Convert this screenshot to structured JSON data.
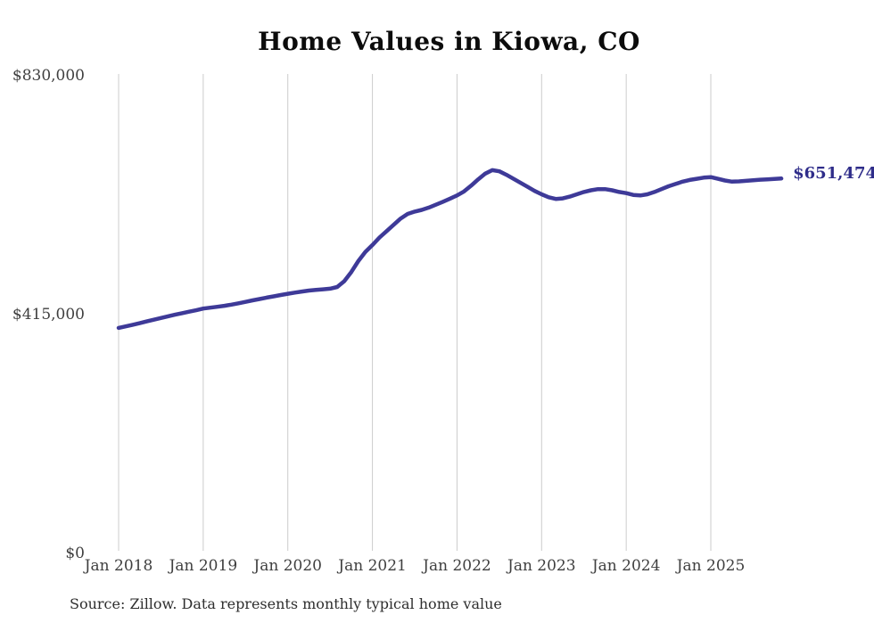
{
  "title": "Home Values in Kiowa, CO",
  "source_note": "Source: Zillow. Data represents monthly typical home value",
  "chart_data": {
    "type": "line",
    "title": "Home Values in Kiowa, CO",
    "xlabel": "",
    "ylabel": "",
    "ylim": [
      0,
      830000
    ],
    "grid": "vertical-only",
    "legend_position": "none",
    "colors": {
      "line": "#3e3a98",
      "end_label": "#2f2d8a",
      "gridline": "#cccccc",
      "axis_text": "#3f3f3f",
      "title_text": "#0c0c0c",
      "background": "#ffffff"
    },
    "y_ticks": [
      {
        "label": "$830,000",
        "value": 830000
      },
      {
        "label": "$415,000",
        "value": 415000
      },
      {
        "label": "$0",
        "value": 0
      }
    ],
    "x_tick_labels": [
      "Jan 2018",
      "Jan 2019",
      "Jan 2020",
      "Jan 2021",
      "Jan 2022",
      "Jan 2023",
      "Jan 2024",
      "Jan 2025"
    ],
    "last_value": 651474,
    "last_value_label": "$651,474",
    "series": [
      {
        "name": "Typical home value",
        "frequency": "monthly",
        "start": "2018-01",
        "end": "2025-11",
        "values": [
          392000,
          394600,
          397300,
          400200,
          403200,
          406200,
          409100,
          412000,
          414800,
          417500,
          420100,
          422600,
          425500,
          427100,
          428700,
          430400,
          432400,
          434700,
          437200,
          439700,
          442100,
          444500,
          446800,
          449100,
          451200,
          453200,
          455100,
          456800,
          458000,
          459000,
          460000,
          463000,
          473000,
          489000,
          508000,
          524000,
          536000,
          549000,
          560000,
          571000,
          582000,
          590000,
          594000,
          597000,
          601000,
          606000,
          611000,
          616500,
          622000,
          629000,
          639000,
          650000,
          660000,
          666000,
          664000,
          658000,
          651000,
          644000,
          637000,
          630000,
          624000,
          619000,
          616000,
          617000,
          620000,
          624000,
          628000,
          631000,
          633000,
          633000,
          631000,
          628000,
          626000,
          623000,
          622000,
          624000,
          628000,
          633000,
          638000,
          642000,
          646000,
          649000,
          651000,
          653000,
          654000,
          651000,
          648000,
          646000,
          646500,
          647500,
          648500,
          649500,
          650000,
          650700,
          651474
        ]
      }
    ]
  }
}
